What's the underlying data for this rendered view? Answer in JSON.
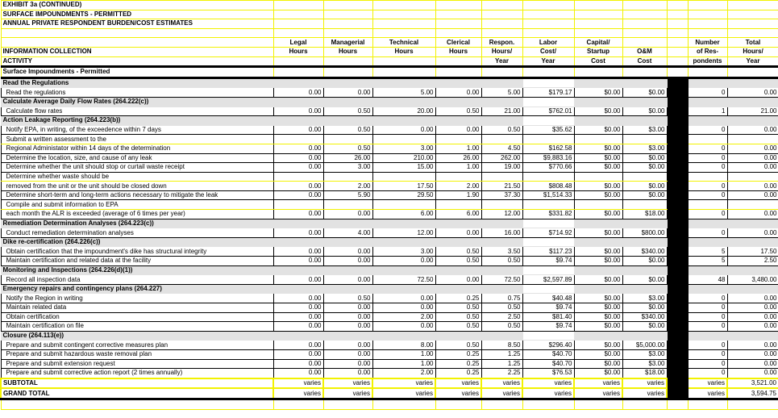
{
  "title_lines": [
    "EXHIBIT 3a (CONTINUED)",
    "SURFACE IMPOUNDMENTS - PERMITTED",
    "ANNUAL PRIVATE RESPONDENT BURDEN/COST ESTIMATES"
  ],
  "header": {
    "activity": [
      "",
      "INFORMATION COLLECTION",
      "ACTIVITY"
    ],
    "columns": [
      [
        "Legal",
        "Hours",
        ""
      ],
      [
        "Managerial",
        "Hours",
        ""
      ],
      [
        "Technical",
        "Hours",
        ""
      ],
      [
        "Clerical",
        "Hours",
        ""
      ],
      [
        "Respon.",
        "Hours/",
        "Year"
      ],
      [
        "Labor",
        "Cost/",
        "Year"
      ],
      [
        "Capital/",
        "Startup",
        "Cost"
      ],
      [
        "",
        "O&M",
        "Cost"
      ],
      [
        "Number",
        "of Res-",
        "pondents"
      ],
      [
        "Total",
        "Hours/",
        "Year"
      ]
    ]
  },
  "category": "Surface Impoundments - Permitted",
  "rows": [
    {
      "type": "section",
      "label": "Read the Regulations"
    },
    {
      "type": "item",
      "label": "Read the regulations",
      "values": [
        "0.00",
        "0.00",
        "5.00",
        "0.00",
        "5.00",
        "$179.17",
        "$0.00",
        "$0.00",
        "0",
        "0.00"
      ]
    },
    {
      "type": "section",
      "label": "Calculate Average Daily Flow Rates (264.222(c))"
    },
    {
      "type": "item",
      "label": "Calculate flow rates",
      "values": [
        "0.00",
        "0.50",
        "20.00",
        "0.50",
        "21.00",
        "$762.01",
        "$0.00",
        "$0.00",
        "1",
        "21.00"
      ]
    },
    {
      "type": "section",
      "label": "Action Leakage Reporting (264.223(b))"
    },
    {
      "type": "item",
      "label": "Notify EPA, in writing, of the exceedence within 7 days",
      "values": [
        "0.00",
        "0.50",
        "0.00",
        "0.00",
        "0.50",
        "$35.62",
        "$0.00",
        "$3.00",
        "0",
        "0.00"
      ]
    },
    {
      "type": "text",
      "label": "Submit a written assessment to the"
    },
    {
      "type": "item",
      "label": "Regional Administator within 14 days of the determination",
      "values": [
        "0.00",
        "0.50",
        "3.00",
        "1.00",
        "4.50",
        "$162.58",
        "$0.00",
        "$3.00",
        "0",
        "0.00"
      ]
    },
    {
      "type": "item",
      "label": "Determine the location, size, and cause of any leak",
      "values": [
        "0.00",
        "26.00",
        "210.00",
        "26.00",
        "262.00",
        "$9,883.16",
        "$0.00",
        "$0.00",
        "0",
        "0.00"
      ]
    },
    {
      "type": "item",
      "label": "Determine whether the unit should stop or curtail waste receipt",
      "values": [
        "0.00",
        "3.00",
        "15.00",
        "1.00",
        "19.00",
        "$770.66",
        "$0.00",
        "$0.00",
        "0",
        "0.00"
      ]
    },
    {
      "type": "text",
      "label": "Determine whether waste should be"
    },
    {
      "type": "item",
      "label": "removed from the unit or the unit should be closed down",
      "values": [
        "0.00",
        "2.00",
        "17.50",
        "2.00",
        "21.50",
        "$808.48",
        "$0.00",
        "$0.00",
        "0",
        "0.00"
      ]
    },
    {
      "type": "item",
      "label": "Determine short-term and long-term actions necessary to mitigate the leak",
      "values": [
        "0.00",
        "5.90",
        "29.50",
        "1.90",
        "37.30",
        "$1,514.33",
        "$0.00",
        "$0.00",
        "0",
        "0.00"
      ]
    },
    {
      "type": "text",
      "label": "Compile and submit information to EPA"
    },
    {
      "type": "item",
      "label": "each month the ALR is exceeded (average of 6 times per year)",
      "values": [
        "0.00",
        "0.00",
        "6.00",
        "6.00",
        "12.00",
        "$331.82",
        "$0.00",
        "$18.00",
        "0",
        "0.00"
      ]
    },
    {
      "type": "section",
      "label": "Remediation Determination Analyses (264.223(c))"
    },
    {
      "type": "item",
      "label": "Conduct remediation determination analyses",
      "values": [
        "0.00",
        "4.00",
        "12.00",
        "0.00",
        "16.00",
        "$714.92",
        "$0.00",
        "$800.00",
        "0",
        "0.00"
      ]
    },
    {
      "type": "section",
      "label": "Dike re-certification (264.226(c))"
    },
    {
      "type": "item",
      "label": "Obtain certification that the impoundment's dike has structural integrity",
      "values": [
        "0.00",
        "0.00",
        "3.00",
        "0.50",
        "3.50",
        "$117.23",
        "$0.00",
        "$340.00",
        "5",
        "17.50"
      ]
    },
    {
      "type": "item",
      "label": "Maintain certification and related data at the facility",
      "values": [
        "0.00",
        "0.00",
        "0.00",
        "0.50",
        "0.50",
        "$9.74",
        "$0.00",
        "$0.00",
        "5",
        "2.50"
      ]
    },
    {
      "type": "section",
      "label": "Monitoring and Inspections (264.226(d)(1))"
    },
    {
      "type": "item",
      "label": "Record all inspection data",
      "values": [
        "0.00",
        "0.00",
        "72.50",
        "0.00",
        "72.50",
        "$2,597.89",
        "$0.00",
        "$0.00",
        "48",
        "3,480.00"
      ]
    },
    {
      "type": "section",
      "label": "Emergency repairs and contingency plans (264.227)"
    },
    {
      "type": "item",
      "label": "Notify the Region in writing",
      "values": [
        "0.00",
        "0.50",
        "0.00",
        "0.25",
        "0.75",
        "$40.48",
        "$0.00",
        "$3.00",
        "0",
        "0.00"
      ]
    },
    {
      "type": "item",
      "label": "Maintain related data",
      "values": [
        "0.00",
        "0.00",
        "0.00",
        "0.50",
        "0.50",
        "$9.74",
        "$0.00",
        "$0.00",
        "0",
        "0.00"
      ]
    },
    {
      "type": "item",
      "label": "Obtain certification",
      "values": [
        "0.00",
        "0.00",
        "2.00",
        "0.50",
        "2.50",
        "$81.40",
        "$0.00",
        "$340.00",
        "0",
        "0.00"
      ]
    },
    {
      "type": "item",
      "label": "Maintain certification on file",
      "values": [
        "0.00",
        "0.00",
        "0.00",
        "0.50",
        "0.50",
        "$9.74",
        "$0.00",
        "$0.00",
        "0",
        "0.00"
      ]
    },
    {
      "type": "section",
      "label": "Closure (264.113(e))"
    },
    {
      "type": "item",
      "label": "Prepare and submit contingent corrective measures plan",
      "values": [
        "0.00",
        "0.00",
        "8.00",
        "0.50",
        "8.50",
        "$296.40",
        "$0.00",
        "$5,000.00",
        "0",
        "0.00"
      ]
    },
    {
      "type": "item",
      "label": "Prepare and submit hazardous waste removal plan",
      "values": [
        "0.00",
        "0.00",
        "1.00",
        "0.25",
        "1.25",
        "$40.70",
        "$0.00",
        "$3.00",
        "0",
        "0.00"
      ]
    },
    {
      "type": "item",
      "label": "Prepare and submit extension request",
      "values": [
        "0.00",
        "0.00",
        "1.00",
        "0.25",
        "1.25",
        "$40.70",
        "$0.00",
        "$3.00",
        "0",
        "0.00"
      ]
    },
    {
      "type": "item",
      "label": "Prepare and submit corrective action report (2 times annually)",
      "values": [
        "0.00",
        "0.00",
        "2.00",
        "0.25",
        "2.25",
        "$76.53",
        "$0.00",
        "$18.00",
        "0",
        "0.00"
      ]
    }
  ],
  "totals": [
    {
      "label": "SUBTOTAL",
      "values": [
        "varies",
        "varies",
        "varies",
        "varies",
        "varies",
        "varies",
        "varies",
        "varies",
        "varies",
        "3,521.00"
      ]
    },
    {
      "label": "GRAND TOTAL",
      "values": [
        "varies",
        "varies",
        "varies",
        "varies",
        "varies",
        "varies",
        "varies",
        "varies",
        "varies",
        "3,594.75"
      ]
    }
  ]
}
